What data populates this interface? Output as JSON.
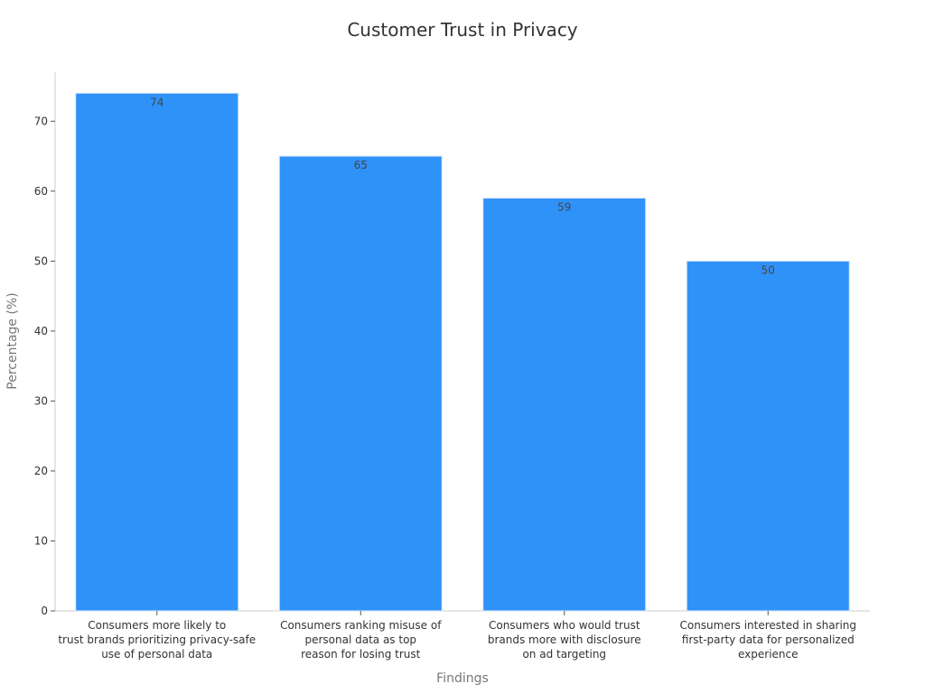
{
  "chart_data": {
    "type": "bar",
    "title": "Customer Trust in Privacy",
    "xlabel": "Findings",
    "ylabel": "Percentage (%)",
    "ylim": [
      0,
      77
    ],
    "yticks": [
      0,
      10,
      20,
      30,
      40,
      50,
      60,
      70
    ],
    "grid": false,
    "categories": [
      "Consumers more likely to trust brands prioritizing privacy-safe use of personal data",
      "Consumers ranking misuse of personal data as top reason for losing trust",
      "Consumers who would trust brands more with disclosure on ad targeting",
      "Consumers interested in sharing first-party data for personalized experience"
    ],
    "category_lines": [
      [
        "Consumers more likely to",
        "trust brands prioritizing privacy-safe",
        "use of personal data"
      ],
      [
        "Consumers ranking misuse of",
        "personal data as top",
        "reason for losing trust"
      ],
      [
        "Consumers who would trust",
        "brands more with disclosure",
        "on ad targeting"
      ],
      [
        "Consumers interested in sharing",
        "first-party data for personalized",
        "experience"
      ]
    ],
    "values": [
      74,
      65,
      59,
      50
    ],
    "bar_color": "#2f92f9",
    "bar_edge_color": "#d9e6f5"
  }
}
